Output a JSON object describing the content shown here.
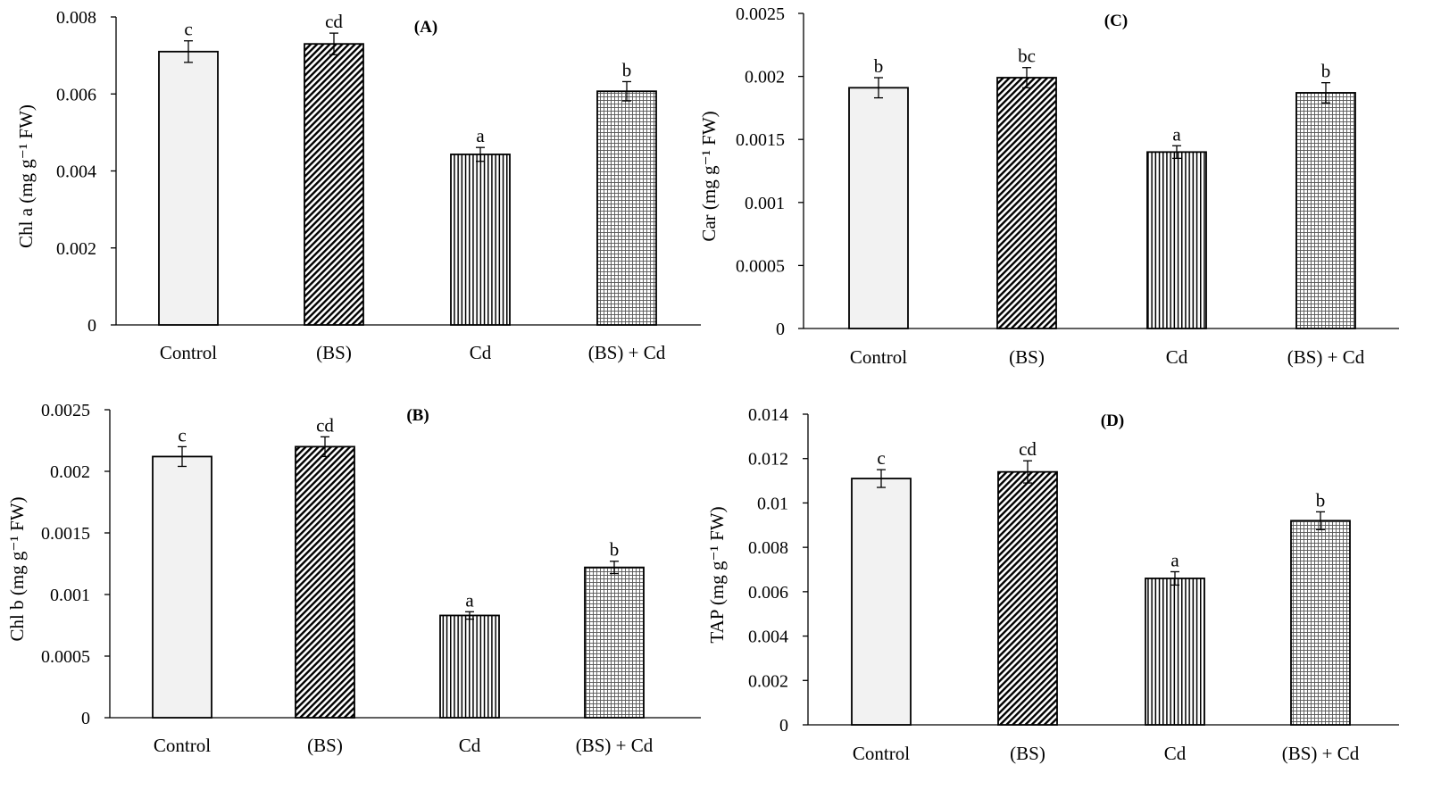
{
  "figure": {
    "title": "Four-panel bar chart of pigment contents under Cd and (BS) treatments"
  },
  "chart_data": [
    {
      "type": "bar",
      "panel": "(A)",
      "title": "(A)",
      "xlabel": "",
      "ylabel": "Chl a (mg g⁻¹ FW)",
      "categories": [
        "Control",
        "(BS)",
        "Cd",
        "(BS) + Cd"
      ],
      "values": [
        0.0071,
        0.0073,
        0.00443,
        0.00607
      ],
      "errors": [
        0.00028,
        0.00028,
        0.00018,
        0.00025
      ],
      "letters": [
        "c",
        "cd",
        "a",
        "b"
      ],
      "ylim": [
        0,
        0.008
      ],
      "yticks": [
        0,
        0.002,
        0.004,
        0.006,
        0.008
      ],
      "ytick_labels": [
        "0",
        "0.002",
        "0.004",
        "0.006",
        "0.008"
      ]
    },
    {
      "type": "bar",
      "panel": "(B)",
      "title": "(B)",
      "xlabel": "",
      "ylabel": "Chl b (mg g⁻¹ FW)",
      "categories": [
        "Control",
        "(BS)",
        "Cd",
        "(BS) + Cd"
      ],
      "values": [
        0.00212,
        0.0022,
        0.00083,
        0.00122
      ],
      "errors": [
        8e-05,
        8e-05,
        3e-05,
        5e-05
      ],
      "letters": [
        "c",
        "cd",
        "a",
        "b"
      ],
      "ylim": [
        0,
        0.0025
      ],
      "yticks": [
        0,
        0.0005,
        0.001,
        0.0015,
        0.002,
        0.0025
      ],
      "ytick_labels": [
        "0",
        "0.0005",
        "0.001",
        "0.0015",
        "0.002",
        "0.0025"
      ]
    },
    {
      "type": "bar",
      "panel": "(C)",
      "title": "(C)",
      "xlabel": "",
      "ylabel": "Car (mg g⁻¹ FW)",
      "categories": [
        "Control",
        "(BS)",
        "Cd",
        "(BS) + Cd"
      ],
      "values": [
        0.00191,
        0.00199,
        0.0014,
        0.00187
      ],
      "errors": [
        8e-05,
        8e-05,
        5e-05,
        8e-05
      ],
      "letters": [
        "b",
        "bc",
        "a",
        "b"
      ],
      "ylim": [
        0,
        0.0025
      ],
      "yticks": [
        0,
        0.0005,
        0.001,
        0.0015,
        0.002,
        0.0025
      ],
      "ytick_labels": [
        "0",
        "0.0005",
        "0.001",
        "0.0015",
        "0.002",
        "0.0025"
      ]
    },
    {
      "type": "bar",
      "panel": "(D)",
      "title": "(D)",
      "xlabel": "",
      "ylabel": "TAP (mg g⁻¹ FW)",
      "categories": [
        "Control",
        "(BS)",
        "Cd",
        "(BS) + Cd"
      ],
      "values": [
        0.0111,
        0.0114,
        0.0066,
        0.0092
      ],
      "errors": [
        0.0004,
        0.0005,
        0.0003,
        0.0004
      ],
      "letters": [
        "c",
        "cd",
        "a",
        "b"
      ],
      "ylim": [
        0,
        0.014
      ],
      "yticks": [
        0,
        0.002,
        0.004,
        0.006,
        0.008,
        0.01,
        0.012,
        0.014
      ],
      "ytick_labels": [
        "0",
        "0.002",
        "0.004",
        "0.006",
        "0.008",
        "0.01",
        "0.012",
        "0.014"
      ]
    }
  ],
  "colors": {
    "axis": "#000000",
    "bar_outline": "#000000",
    "control_fill": "#f2f2f2",
    "pattern_ink": "#000000",
    "background": "#ffffff"
  }
}
